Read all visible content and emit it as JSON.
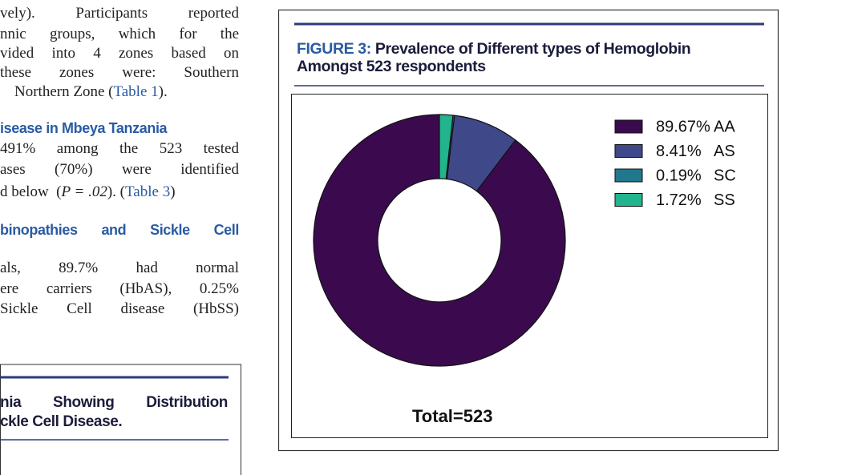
{
  "body_text": {
    "paragraph_1": [
      "vely). Participants reported",
      "nnic groups, which for the",
      "vided into 4 zones based on",
      "these zones were: Southern"
    ],
    "paragraph_1_last": [
      "Northern Zone (",
      "Table 1",
      ")."
    ],
    "heading_1": "isease in Mbeya Tanzania",
    "paragraph_2": [
      "491% among the 523 tested",
      "ases (70%) were identified"
    ],
    "paragraph_2_last": [
      "d below  (",
      "P = .02",
      "). (",
      "Table 3",
      ")"
    ],
    "heading_2": "binopathies and Sickle Cell",
    "paragraph_3": [
      "als, 89.7% had normal",
      "ere carriers (HbAS), 0.25%",
      "Sickle Cell disease (HbSS)"
    ]
  },
  "table_caption": [
    "nia Showing Distribution",
    "ckle Cell Disease."
  ],
  "figure": {
    "label": "FIGURE 3:",
    "title_lines": [
      "Prevalence of Different types of Hemoglobin",
      "Amongst 523 respondents"
    ]
  },
  "chart_data": {
    "type": "donut",
    "categories": [
      "AA",
      "AS",
      "SC",
      "SS"
    ],
    "values": [
      89.67,
      8.41,
      0.19,
      1.72
    ],
    "value_labels": [
      "89.67%",
      "8.41%",
      "0.19%",
      "1.72%"
    ],
    "colors": [
      "#3b0a4e",
      "#3f4889",
      "#21788c",
      "#22b48c"
    ],
    "legend": "upper right",
    "annotation": "Total=523"
  }
}
